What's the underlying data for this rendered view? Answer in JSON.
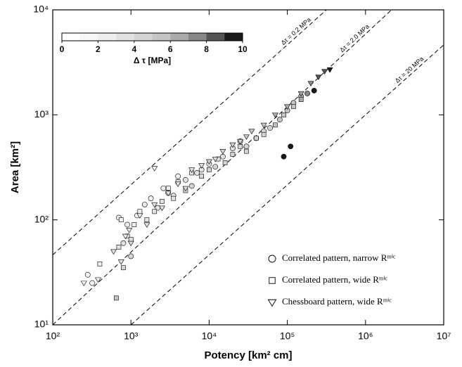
{
  "chart_data": {
    "type": "scatter",
    "xlabel": "Potency [km² cm]",
    "ylabel": "Area [km²]",
    "xlog": true,
    "ylog": true,
    "xlim": [
      100,
      10000000
    ],
    "ylim": [
      10,
      10000
    ],
    "xticks": [
      {
        "value": 100,
        "label": "10²"
      },
      {
        "value": 1000,
        "label": "10³"
      },
      {
        "value": 10000,
        "label": "10⁴"
      },
      {
        "value": 100000,
        "label": "10⁵"
      },
      {
        "value": 1000000,
        "label": "10⁶"
      },
      {
        "value": 10000000,
        "label": "10⁷"
      }
    ],
    "yticks": [
      {
        "value": 10,
        "label": "10¹"
      },
      {
        "value": 100,
        "label": "10²"
      },
      {
        "value": 1000,
        "label": "10³"
      },
      {
        "value": 10000,
        "label": "10⁴"
      }
    ],
    "legend": "lower right",
    "colorbar": {
      "label": "Δ τ [MPa]",
      "lim": [
        0,
        10
      ],
      "ticks": [
        0,
        2,
        4,
        6,
        8,
        10
      ],
      "colors": [
        "#ffffff",
        "#f7f7f7",
        "#eeeeee",
        "#e2e2e2",
        "#d4d4d4",
        "#c4c4c4",
        "#aaaaaa",
        "#888888",
        "#555555",
        "#1a1a1a"
      ]
    },
    "reference_lines": [
      {
        "label": "Δτ = 0.2 MPa",
        "x": [
          100,
          316000
        ],
        "y": [
          46.4,
          10000
        ]
      },
      {
        "label": "Δτ = 2.0 MPa",
        "x": [
          100,
          2150000
        ],
        "y": [
          10,
          10000
        ]
      },
      {
        "label": "Δτ = 20 MPa",
        "x": [
          1000,
          10000000
        ],
        "y": [
          10,
          4640
        ]
      }
    ],
    "series": [
      {
        "name": "Correlated pattern, narrow Rᵐⁱᶜ",
        "marker": "circle",
        "x": [
          280,
          320,
          700,
          800,
          900,
          1000,
          1200,
          1500,
          1800,
          2200,
          2600,
          3000,
          3500,
          4000,
          5000,
          6000,
          7000,
          8000,
          10000,
          12000,
          15000,
          20000,
          25000,
          30000,
          40000,
          50000,
          60000,
          80000,
          100000,
          120000,
          150000,
          180000,
          220000,
          90000,
          110000
        ],
        "values": [
          30,
          25,
          105,
          60,
          90,
          45,
          110,
          140,
          160,
          130,
          200,
          180,
          170,
          260,
          240,
          210,
          280,
          300,
          340,
          320,
          400,
          480,
          560,
          500,
          600,
          700,
          750,
          900,
          1100,
          1300,
          1500,
          1600,
          1700,
          400,
          500
        ],
        "stress": [
          1,
          1,
          2,
          3,
          2,
          4,
          2,
          2,
          2,
          3,
          2,
          3,
          3,
          2,
          3,
          4,
          3,
          3,
          3,
          4,
          3,
          3,
          3,
          4,
          4,
          4,
          4,
          5,
          5,
          5,
          6,
          7,
          9,
          9,
          10
        ]
      },
      {
        "name": "Correlated pattern, wide Rᵐⁱᶜ",
        "marker": "square",
        "x": [
          400,
          650,
          700,
          750,
          800,
          900,
          1000,
          1100,
          1300,
          1600,
          2000,
          2500,
          3000,
          3500,
          4000,
          5000,
          6000,
          8000,
          10000,
          13000,
          16000,
          20000,
          25000,
          30000,
          40000,
          50000,
          70000,
          90000,
          120000,
          150000
        ],
        "values": [
          38,
          18,
          55,
          100,
          35,
          70,
          65,
          90,
          120,
          100,
          120,
          150,
          200,
          160,
          230,
          190,
          280,
          260,
          300,
          380,
          350,
          420,
          500,
          450,
          600,
          650,
          800,
          1000,
          1200,
          1400
        ],
        "stress": [
          2,
          5,
          3,
          1,
          4,
          3,
          3,
          2,
          2,
          3,
          3,
          3,
          2,
          3,
          3,
          4,
          3,
          4,
          4,
          3,
          4,
          4,
          4,
          4,
          4,
          4,
          5,
          5,
          5,
          6
        ]
      },
      {
        "name": "Chessboard pattern, wide Rᵐⁱᶜ",
        "marker": "triangle",
        "x": [
          250,
          380,
          600,
          750,
          850,
          950,
          1000,
          1300,
          1600,
          2000,
          2500,
          3000,
          4000,
          5000,
          6000,
          8000,
          10000,
          12000,
          15000,
          20000,
          25000,
          30000,
          35000,
          50000,
          70000,
          100000,
          150000,
          200000,
          250000,
          300000,
          350000,
          2000
        ],
        "values": [
          25,
          27,
          50,
          40,
          70,
          80,
          60,
          110,
          90,
          140,
          130,
          180,
          220,
          200,
          300,
          330,
          360,
          380,
          450,
          520,
          560,
          620,
          700,
          800,
          1000,
          1200,
          1600,
          2000,
          2300,
          2600,
          2700,
          310
        ],
        "stress": [
          1,
          2,
          3,
          3,
          2,
          3,
          4,
          2,
          3,
          2,
          3,
          3,
          3,
          3,
          3,
          3,
          4,
          4,
          4,
          4,
          4,
          5,
          5,
          5,
          6,
          6,
          6,
          7,
          8,
          8,
          9,
          1
        ]
      }
    ]
  }
}
